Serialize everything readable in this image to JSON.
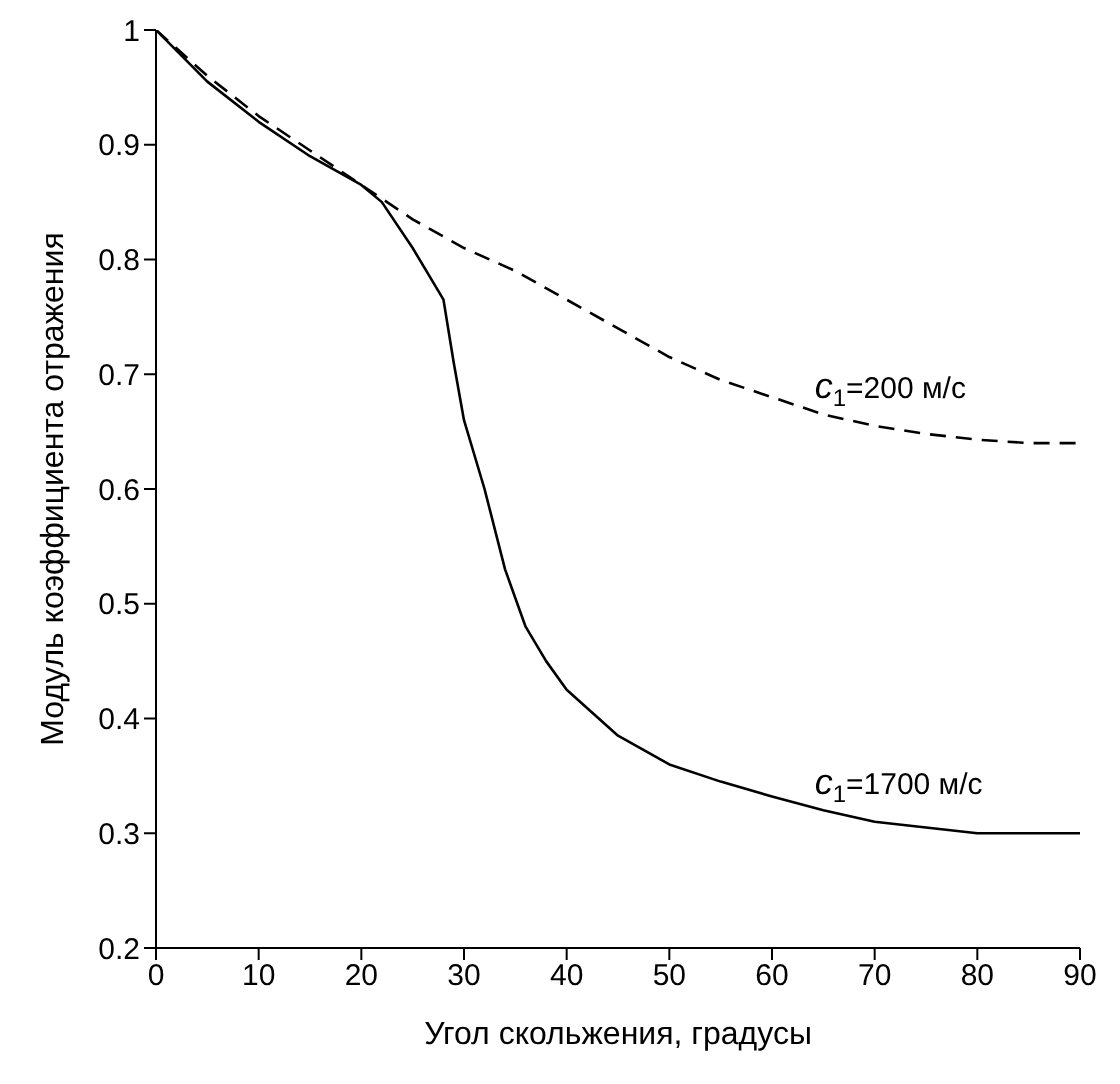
{
  "chart_data": {
    "type": "line",
    "xlabel": "Угол скольжения, градусы",
    "ylabel": "Модуль коэффициента отражения",
    "xlim": [
      0,
      90
    ],
    "xticks": [
      0,
      10,
      20,
      30,
      40,
      50,
      60,
      70,
      80,
      90
    ],
    "ylim": [
      0.2,
      1
    ],
    "yticks": [
      0.2,
      0.3,
      0.4,
      0.5,
      0.6,
      0.7,
      0.8,
      0.9,
      1
    ],
    "grid": false,
    "marker": "none",
    "series": [
      {
        "name": "c$_{1}$=1700 м/с",
        "color": "#000000",
        "line_style": "solid",
        "x": [
          0,
          5,
          10,
          15,
          20,
          22,
          25,
          27,
          28,
          29,
          30,
          32,
          34,
          36,
          38,
          40,
          45,
          50,
          55,
          60,
          65,
          70,
          75,
          80,
          90
        ],
        "values": [
          1,
          0.955,
          0.92,
          0.89,
          0.865,
          0.85,
          0.81,
          0.78,
          0.765,
          0.71,
          0.66,
          0.6,
          0.53,
          0.48,
          0.45,
          0.425,
          0.385,
          0.36,
          0.345,
          0.332,
          0.32,
          0.31,
          0.305,
          0.3,
          0.3
        ]
      },
      {
        "name": "c$_{1}$=200 м/с",
        "color": "#000000",
        "line_style": "dashed",
        "x": [
          0,
          5,
          10,
          15,
          20,
          25,
          30,
          35,
          40,
          45,
          50,
          55,
          60,
          65,
          70,
          75,
          80,
          85,
          90
        ],
        "values": [
          1,
          0.96,
          0.925,
          0.895,
          0.865,
          0.835,
          0.81,
          0.79,
          0.765,
          0.74,
          0.715,
          0.695,
          0.68,
          0.665,
          0.655,
          0.648,
          0.643,
          0.64,
          0.64
        ]
      }
    ]
  }
}
